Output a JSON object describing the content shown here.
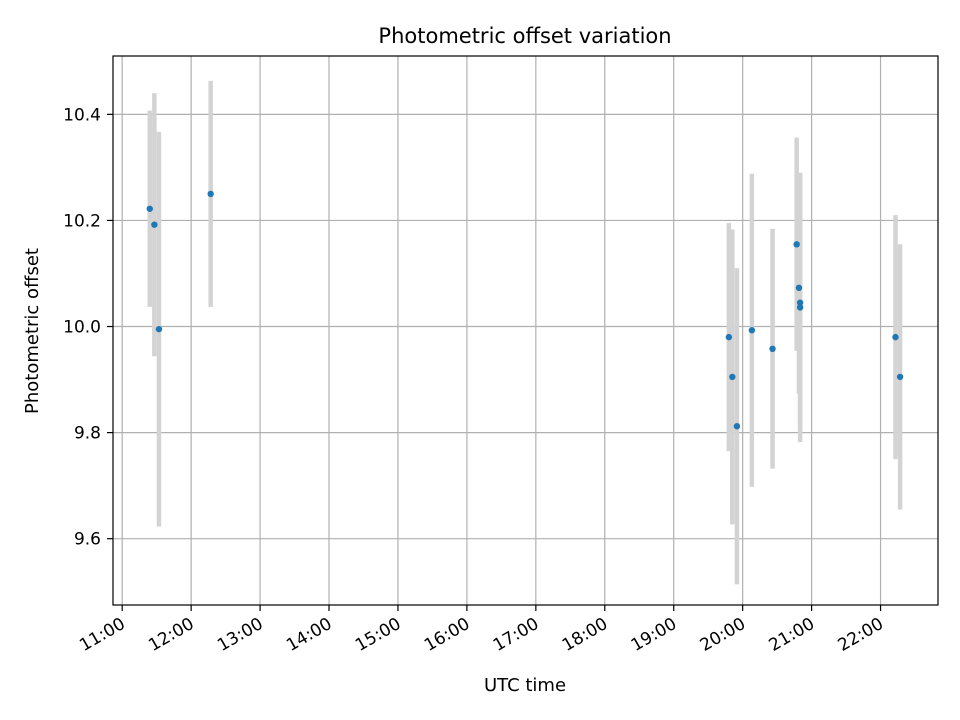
{
  "chart_data": {
    "type": "scatter",
    "title": "Photometric offset variation",
    "xlabel": "UTC time",
    "ylabel": "Photometric offset",
    "x_axis": "time",
    "xlim": [
      "10:52",
      "22:50"
    ],
    "ylim": [
      9.475,
      10.51
    ],
    "grid": true,
    "x_ticks": [
      "11:00",
      "12:00",
      "13:00",
      "14:00",
      "15:00",
      "16:00",
      "17:00",
      "18:00",
      "19:00",
      "20:00",
      "21:00",
      "22:00"
    ],
    "y_ticks": [
      9.6,
      9.8,
      10.0,
      10.2,
      10.4
    ],
    "y_tick_labels": [
      "9.6",
      "9.8",
      "10.0",
      "10.2",
      "10.4"
    ],
    "colors": {
      "marker": "#1f77b4",
      "errorbar": "#d3d3d3",
      "grid": "#b0b0b0"
    },
    "points": [
      {
        "x": "11:24",
        "y": 10.222,
        "yerr": 0.185
      },
      {
        "x": "11:28",
        "y": 10.192,
        "yerr": 0.248
      },
      {
        "x": "11:32",
        "y": 9.995,
        "yerr": 0.372
      },
      {
        "x": "12:17",
        "y": 10.25,
        "yerr": 0.213
      },
      {
        "x": "19:48",
        "y": 9.98,
        "yerr": 0.215
      },
      {
        "x": "19:51",
        "y": 9.905,
        "yerr": 0.278
      },
      {
        "x": "19:55",
        "y": 9.812,
        "yerr": 0.298
      },
      {
        "x": "20:08",
        "y": 9.993,
        "yerr": 0.295
      },
      {
        "x": "20:26",
        "y": 9.958,
        "yerr": 0.226
      },
      {
        "x": "20:47",
        "y": 10.155,
        "yerr": 0.201
      },
      {
        "x": "20:49",
        "y": 10.073,
        "yerr": 0.2
      },
      {
        "x": "20:50",
        "y": 10.045,
        "yerr": 0.242
      },
      {
        "x": "20:50",
        "y": 10.036,
        "yerr": 0.254
      },
      {
        "x": "22:13",
        "y": 9.98,
        "yerr": 0.23
      },
      {
        "x": "22:17",
        "y": 9.905,
        "yerr": 0.25
      }
    ]
  }
}
